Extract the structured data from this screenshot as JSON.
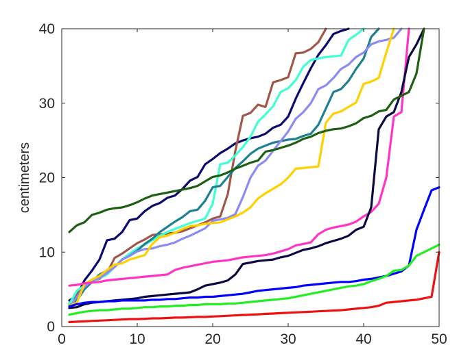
{
  "chart_data": {
    "type": "line",
    "title": "",
    "xlabel": "",
    "ylabel": "centimeters",
    "xlim": [
      0,
      50
    ],
    "ylim": [
      0,
      40
    ],
    "xticks": [
      0,
      10,
      20,
      30,
      40,
      50
    ],
    "yticks": [
      0,
      10,
      20,
      30,
      40
    ],
    "grid": false,
    "legend": "none",
    "series": [
      {
        "color": "#0a0a6e",
        "x": [
          1,
          2,
          3,
          4,
          5,
          6,
          7,
          8,
          9,
          10,
          11,
          12,
          13,
          14,
          15,
          16,
          17,
          18,
          19,
          20,
          21,
          22,
          23,
          24,
          25,
          26,
          27,
          28,
          29,
          30,
          31,
          32,
          33,
          34,
          35,
          36,
          37,
          38
        ],
        "values": [
          3.5,
          4.1,
          6.2,
          7.5,
          9.0,
          11.6,
          11.8,
          12.7,
          14.3,
          14.5,
          15.5,
          16.2,
          16.6,
          17.3,
          17.6,
          18.5,
          19.6,
          20.1,
          21.8,
          22.5,
          23.3,
          23.9,
          24.6,
          25.0,
          25.3,
          25.5,
          25.9,
          26.7,
          27.1,
          28.2,
          30.6,
          32.7,
          34.7,
          36.5,
          37.8,
          39.3,
          39.7,
          40
        ]
      },
      {
        "color": "#a0574a",
        "x": [
          1,
          2,
          3,
          4,
          5,
          6,
          7,
          8,
          9,
          10,
          11,
          12,
          13,
          14,
          15,
          16,
          17,
          18,
          19,
          20,
          21,
          22,
          23,
          24,
          25,
          26,
          27,
          28,
          29,
          30,
          31,
          32,
          33,
          34,
          35
        ],
        "values": [
          3.1,
          4.5,
          5.4,
          6.1,
          6.4,
          7.2,
          9.2,
          9.8,
          10.5,
          11.2,
          11.7,
          12.3,
          12.4,
          12.5,
          12.6,
          12.8,
          13.2,
          13.6,
          14.0,
          14.5,
          14.8,
          17.8,
          23.6,
          28.3,
          28.7,
          29.8,
          29.5,
          32.8,
          33.1,
          33.5,
          36.7,
          36.8,
          37.3,
          38.2,
          40
        ]
      },
      {
        "color": "#40ffd0",
        "x": [
          1,
          2,
          3,
          4,
          5,
          6,
          7,
          8,
          9,
          10,
          11,
          12,
          13,
          14,
          15,
          16,
          17,
          18,
          19,
          20,
          21,
          22,
          23,
          24,
          25,
          26,
          27,
          28,
          29,
          30,
          31,
          32,
          33,
          34,
          35,
          36,
          37,
          38,
          39,
          40
        ],
        "values": [
          3.0,
          4.8,
          5.5,
          6.0,
          6.5,
          7.0,
          8.0,
          9.0,
          9.8,
          10.5,
          11.0,
          11.6,
          12.2,
          12.7,
          13.1,
          13.5,
          13.9,
          14.2,
          14.5,
          16.5,
          21.8,
          22.0,
          23.0,
          24.1,
          25.5,
          27.5,
          28.5,
          29.6,
          31.5,
          32.0,
          33.1,
          34.9,
          35.8,
          36.0,
          36.2,
          36.3,
          36.4,
          38.5,
          39.2,
          40
        ]
      },
      {
        "color": "#1e8090",
        "x": [
          1,
          2,
          3,
          4,
          5,
          6,
          7,
          8,
          9,
          10,
          11,
          12,
          13,
          14,
          15,
          16,
          17,
          18,
          19,
          20,
          21,
          22,
          23,
          24,
          25,
          26,
          27,
          28,
          29,
          30,
          31,
          32,
          33,
          34,
          35,
          36,
          37,
          38,
          39,
          40,
          41,
          42
        ],
        "values": [
          2.8,
          3.5,
          5.0,
          6.0,
          7.0,
          7.5,
          8.0,
          9.0,
          9.5,
          10.2,
          11.1,
          11.8,
          12.7,
          13.4,
          14.1,
          14.7,
          15.5,
          15.7,
          16.9,
          18.7,
          18.9,
          20.1,
          21.3,
          22.2,
          23.2,
          23.9,
          24.3,
          24.7,
          24.9,
          25.1,
          25.2,
          25.6,
          25.9,
          27.1,
          29.3,
          31.5,
          31.9,
          33.0,
          34.6,
          36.0,
          38.9,
          40
        ]
      },
      {
        "color": "#8a8cf4",
        "x": [
          1,
          2,
          3,
          4,
          5,
          6,
          7,
          8,
          9,
          10,
          11,
          12,
          13,
          14,
          15,
          16,
          17,
          18,
          19,
          20,
          21,
          22,
          23,
          24,
          25,
          26,
          27,
          28,
          29,
          30,
          31,
          32,
          33,
          34,
          35,
          36,
          37,
          38,
          39,
          40,
          41,
          42,
          43,
          44,
          45
        ],
        "values": [
          2.5,
          4.0,
          5.3,
          6.2,
          6.5,
          7.2,
          8.0,
          9.0,
          9.5,
          10.1,
          10.4,
          10.5,
          10.8,
          11.0,
          11.3,
          11.8,
          12.2,
          12.7,
          13.2,
          14.2,
          14.4,
          14.6,
          15.1,
          17.4,
          20.0,
          21.6,
          22.3,
          23.6,
          24.9,
          26.2,
          27.9,
          28.8,
          30.0,
          31.9,
          32.4,
          33.4,
          34.6,
          35.2,
          36.2,
          36.8,
          37.9,
          38.3,
          38.5,
          38.8,
          40
        ]
      },
      {
        "color": "#ffd000",
        "x": [
          1,
          2,
          3,
          4,
          5,
          6,
          7,
          8,
          9,
          10,
          11,
          12,
          13,
          14,
          15,
          16,
          17,
          18,
          19,
          20,
          21,
          22,
          23,
          24,
          25,
          26,
          27,
          28,
          29,
          30,
          31,
          32,
          33,
          34,
          35,
          36,
          37,
          38,
          39,
          40,
          41,
          42,
          43,
          44
        ],
        "values": [
          2.8,
          3.2,
          5.7,
          6.3,
          6.8,
          7.6,
          8.3,
          8.5,
          9.0,
          9.3,
          9.6,
          11.1,
          12.0,
          12.2,
          12.6,
          13.1,
          13.5,
          13.6,
          13.8,
          13.9,
          14.0,
          14.4,
          14.8,
          15.3,
          16.0,
          17.2,
          17.9,
          18.5,
          19.1,
          20.0,
          21.2,
          21.3,
          21.4,
          21.5,
          27.4,
          28.6,
          28.9,
          29.5,
          30.1,
          32.6,
          32.9,
          33.4,
          36.8,
          40
        ]
      },
      {
        "color": "#ff33c4",
        "x": [
          1,
          2,
          3,
          4,
          5,
          6,
          7,
          8,
          9,
          10,
          11,
          12,
          13,
          14,
          15,
          16,
          17,
          18,
          19,
          20,
          21,
          22,
          23,
          24,
          25,
          26,
          27,
          28,
          29,
          30,
          31,
          32,
          33,
          34,
          35,
          36,
          37,
          38,
          39,
          40,
          41,
          42,
          43,
          44,
          45,
          46
        ],
        "values": [
          5.5,
          5.6,
          5.8,
          5.9,
          6.0,
          6.2,
          6.3,
          6.4,
          6.5,
          6.6,
          6.7,
          6.8,
          6.9,
          7.0,
          7.6,
          7.9,
          8.1,
          8.3,
          8.5,
          8.7,
          8.8,
          8.9,
          9.1,
          9.3,
          9.4,
          9.5,
          9.6,
          9.8,
          10.1,
          10.4,
          10.9,
          11.1,
          11.3,
          12.4,
          13.0,
          13.3,
          13.5,
          13.7,
          14.1,
          14.8,
          15.4,
          16.5,
          20.0,
          28.2,
          28.8,
          40
        ]
      },
      {
        "color": "#0a0a40",
        "x": [
          1,
          2,
          3,
          4,
          5,
          6,
          7,
          8,
          9,
          10,
          11,
          12,
          13,
          14,
          15,
          16,
          17,
          18,
          19,
          20,
          21,
          22,
          23,
          24,
          25,
          26,
          27,
          28,
          29,
          30,
          31,
          32,
          33,
          34,
          35,
          36,
          37,
          38,
          39,
          40,
          41,
          42,
          43,
          44,
          45,
          46,
          47,
          48
        ],
        "values": [
          2.5,
          2.6,
          3.0,
          3.2,
          3.3,
          3.4,
          3.5,
          3.6,
          3.7,
          3.8,
          4.0,
          4.1,
          4.2,
          4.3,
          4.4,
          4.5,
          4.6,
          5.0,
          5.5,
          5.7,
          5.9,
          6.2,
          7.0,
          8.4,
          8.6,
          8.8,
          8.9,
          9.0,
          9.3,
          9.5,
          9.9,
          10.3,
          10.5,
          10.8,
          11.2,
          11.5,
          11.8,
          12.2,
          13.0,
          13.4,
          16.0,
          26.5,
          28.2,
          28.8,
          31.5,
          36.2,
          37.9,
          40
        ]
      },
      {
        "color": "#1e5f14",
        "x": [
          1,
          2,
          3,
          4,
          5,
          6,
          7,
          8,
          9,
          10,
          11,
          12,
          13,
          14,
          15,
          16,
          17,
          18,
          19,
          20,
          21,
          22,
          23,
          24,
          25,
          26,
          27,
          28,
          29,
          30,
          31,
          32,
          33,
          34,
          35,
          36,
          37,
          38,
          39,
          40,
          41,
          42,
          43,
          44,
          45,
          46,
          47,
          48
        ],
        "values": [
          12.7,
          13.6,
          14.0,
          15.0,
          15.3,
          15.7,
          15.9,
          16.0,
          16.3,
          16.7,
          17.2,
          17.6,
          17.8,
          18.0,
          18.2,
          18.4,
          18.6,
          18.9,
          19.5,
          20.1,
          20.3,
          20.7,
          21.2,
          21.6,
          22.0,
          22.3,
          23.5,
          23.7,
          24.0,
          24.3,
          24.7,
          25.2,
          25.5,
          26.0,
          26.3,
          26.5,
          26.6,
          26.9,
          27.3,
          28.0,
          28.3,
          28.9,
          29.1,
          30.5,
          31.0,
          31.5,
          34.0,
          40
        ]
      },
      {
        "color": "#0000ff",
        "x": [
          1,
          2,
          3,
          4,
          5,
          6,
          7,
          8,
          9,
          10,
          11,
          12,
          13,
          14,
          15,
          16,
          17,
          18,
          19,
          20,
          21,
          22,
          23,
          24,
          25,
          26,
          27,
          28,
          29,
          30,
          31,
          32,
          33,
          34,
          35,
          36,
          37,
          38,
          39,
          40,
          41,
          42,
          43,
          44,
          45,
          46,
          47,
          48,
          49,
          50
        ],
        "values": [
          2.7,
          3.0,
          3.2,
          3.3,
          3.3,
          3.4,
          3.4,
          3.5,
          3.5,
          3.5,
          3.5,
          3.6,
          3.6,
          3.7,
          3.7,
          3.8,
          3.9,
          3.9,
          4.0,
          4.0,
          4.1,
          4.2,
          4.3,
          4.4,
          4.6,
          4.8,
          4.9,
          5.0,
          5.1,
          5.2,
          5.3,
          5.5,
          5.6,
          5.7,
          5.8,
          5.9,
          6.0,
          6.0,
          6.1,
          6.3,
          6.4,
          6.6,
          6.8,
          7.1,
          7.4,
          8.2,
          13.0,
          15.7,
          18.3,
          18.7
        ]
      },
      {
        "color": "#22ee22",
        "x": [
          1,
          2,
          3,
          4,
          5,
          6,
          7,
          8,
          9,
          10,
          11,
          12,
          13,
          14,
          15,
          16,
          17,
          18,
          19,
          20,
          21,
          22,
          23,
          24,
          25,
          26,
          27,
          28,
          29,
          30,
          31,
          32,
          33,
          34,
          35,
          36,
          37,
          38,
          39,
          40,
          41,
          42,
          43,
          44,
          45,
          46,
          47,
          48,
          49,
          50
        ],
        "values": [
          1.6,
          1.8,
          2.0,
          2.1,
          2.2,
          2.2,
          2.3,
          2.4,
          2.4,
          2.5,
          2.6,
          2.6,
          2.7,
          2.7,
          2.8,
          2.8,
          2.9,
          2.9,
          3.0,
          3.0,
          3.0,
          3.1,
          3.1,
          3.2,
          3.3,
          3.4,
          3.5,
          3.6,
          3.7,
          3.8,
          4.0,
          4.2,
          4.4,
          4.6,
          4.8,
          5.0,
          5.2,
          5.4,
          5.5,
          5.7,
          6.1,
          6.4,
          6.8,
          7.5,
          7.6,
          8.2,
          9.5,
          10.0,
          10.5,
          11.0
        ]
      },
      {
        "color": "#ee1111",
        "x": [
          1,
          2,
          3,
          4,
          5,
          6,
          7,
          8,
          9,
          10,
          11,
          12,
          13,
          14,
          15,
          16,
          17,
          18,
          19,
          20,
          21,
          22,
          23,
          24,
          25,
          26,
          27,
          28,
          29,
          30,
          31,
          32,
          33,
          34,
          35,
          36,
          37,
          38,
          39,
          40,
          41,
          42,
          43,
          44,
          45,
          46,
          47,
          48,
          49,
          50
        ],
        "values": [
          0.6,
          0.65,
          0.7,
          0.75,
          0.8,
          0.85,
          0.9,
          0.95,
          1.0,
          1.0,
          1.05,
          1.1,
          1.1,
          1.15,
          1.2,
          1.2,
          1.25,
          1.3,
          1.3,
          1.35,
          1.4,
          1.45,
          1.5,
          1.55,
          1.6,
          1.65,
          1.7,
          1.75,
          1.8,
          1.85,
          1.9,
          1.95,
          2.0,
          2.05,
          2.1,
          2.15,
          2.2,
          2.3,
          2.4,
          2.5,
          2.6,
          2.8,
          3.2,
          3.3,
          3.4,
          3.5,
          3.6,
          3.8,
          4.0,
          10.0
        ]
      }
    ]
  }
}
